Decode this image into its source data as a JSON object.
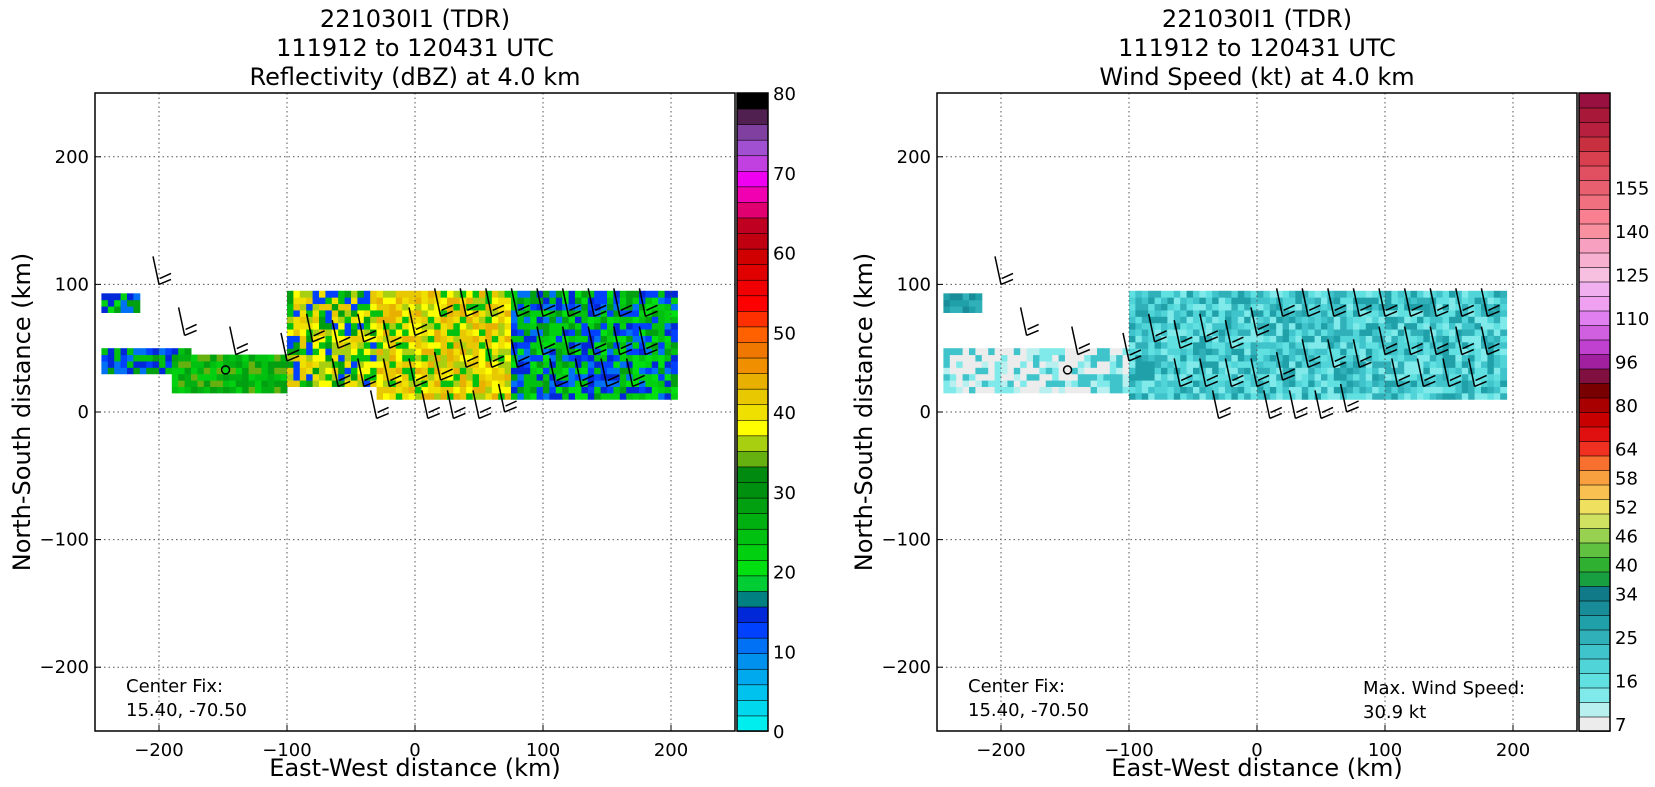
{
  "chart_data": [
    {
      "type": "heatmap",
      "title": [
        "221030I1 (TDR)",
        "111912 to 120431 UTC",
        "Reflectivity (dBZ) at 4.0 km"
      ],
      "xlabel": "East-West distance (km)",
      "ylabel": "North-South distance (km)",
      "xlim": [
        -250,
        250
      ],
      "ylim": [
        -250,
        250
      ],
      "xticks": [
        -200,
        -100,
        0,
        100,
        200
      ],
      "yticks": [
        -200,
        -100,
        0,
        100,
        200
      ],
      "xtick_labels": [
        "−200",
        "−100",
        "0",
        "100",
        "200"
      ],
      "ytick_labels": [
        "−200",
        "−100",
        "0",
        "100",
        "200"
      ],
      "grid": true,
      "annotation": [
        "Center Fix:",
        "15.40, -70.50"
      ],
      "colorbar": {
        "min": 0,
        "max": 80,
        "ticks": [
          0,
          10,
          20,
          30,
          40,
          50,
          60,
          70,
          80
        ],
        "tick_labels": [
          "0",
          "10",
          "20",
          "30",
          "40",
          "50",
          "60",
          "70",
          "80"
        ],
        "colors": [
          "#00eeee",
          "#00d8ee",
          "#00c2ee",
          "#00a8ee",
          "#0090ee",
          "#0070f5",
          "#0040ff",
          "#0028d8",
          "#008080",
          "#00cc33",
          "#00e010",
          "#00d010",
          "#00c010",
          "#00b010",
          "#00a010",
          "#009010",
          "#008a10",
          "#66b010",
          "#a8d010",
          "#ffff00",
          "#f0e000",
          "#e8c800",
          "#e8b000",
          "#f09000",
          "#f07800",
          "#ff6000",
          "#ff3000",
          "#ff0000",
          "#f00000",
          "#e00000",
          "#d00000",
          "#c00010",
          "#c00020",
          "#e00070",
          "#f000b0",
          "#f000f0",
          "#c040e0",
          "#a050d0",
          "#8040a0",
          "#502050",
          "#000000"
        ]
      },
      "echo_regions": [
        {
          "x": [
            -245,
            -215
          ],
          "y": [
            78,
            92
          ],
          "level": "green-blue"
        },
        {
          "x": [
            -245,
            -175
          ],
          "y": [
            30,
            50
          ],
          "level": "blue-green"
        },
        {
          "x": [
            -190,
            -100
          ],
          "y": [
            15,
            45
          ],
          "level": "green"
        },
        {
          "x": [
            -100,
            -30
          ],
          "y": [
            20,
            95
          ],
          "level": "yellow-green"
        },
        {
          "x": [
            -30,
            75
          ],
          "y": [
            10,
            95
          ],
          "level": "yellow"
        },
        {
          "x": [
            75,
            205
          ],
          "y": [
            10,
            95
          ],
          "level": "green-blue"
        }
      ]
    },
    {
      "type": "heatmap",
      "title": [
        "221030I1 (TDR)",
        "111912 to 120431 UTC",
        "Wind Speed (kt) at 4.0 km"
      ],
      "xlabel": "East-West distance (km)",
      "ylabel": "North-South distance (km)",
      "xlim": [
        -250,
        250
      ],
      "ylim": [
        -250,
        250
      ],
      "xticks": [
        -200,
        -100,
        0,
        100,
        200
      ],
      "yticks": [
        -200,
        -100,
        0,
        100,
        200
      ],
      "xtick_labels": [
        "−200",
        "−100",
        "0",
        "100",
        "200"
      ],
      "ytick_labels": [
        "−200",
        "−100",
        "0",
        "100",
        "200"
      ],
      "grid": true,
      "annotation": [
        "Center Fix:",
        "15.40, -70.50"
      ],
      "annotation2": [
        "Max. Wind Speed:",
        "30.9 kt"
      ],
      "colorbar": {
        "tick_labels": [
          "7",
          "16",
          "25",
          "34",
          "40",
          "46",
          "52",
          "58",
          "64",
          "80",
          "96",
          "110",
          "125",
          "140",
          "155"
        ],
        "tick_bins": [
          0,
          3,
          6,
          9,
          11,
          13,
          15,
          17,
          19,
          22,
          25,
          28,
          31,
          34,
          37
        ],
        "colors": [
          "#ececec",
          "#b8f0f0",
          "#80eaea",
          "#60e0e0",
          "#50d4d8",
          "#40c4cc",
          "#30b0b8",
          "#20a0a8",
          "#188c98",
          "#107a88",
          "#18a040",
          "#30b030",
          "#60c040",
          "#98d050",
          "#d0e060",
          "#f0e060",
          "#f8c050",
          "#f8a040",
          "#f87030",
          "#f03020",
          "#e01010",
          "#c80000",
          "#a80000",
          "#780000",
          "#801040",
          "#a020a0",
          "#c040d0",
          "#d060e0",
          "#e080f0",
          "#f0a0f0",
          "#f0b0f0",
          "#f8c0e0",
          "#f8b0d0",
          "#f8a0c0",
          "#f890a0",
          "#f88090",
          "#f07080",
          "#e86070",
          "#e05060",
          "#d84050",
          "#c83040",
          "#b82040",
          "#a81838",
          "#981040"
        ]
      },
      "max_wind_speed": 30.9,
      "wind_regions": [
        {
          "x": [
            -245,
            -215
          ],
          "y": [
            78,
            92
          ],
          "level": "teal"
        },
        {
          "x": [
            -245,
            -100
          ],
          "y": [
            15,
            50
          ],
          "level": "light-cyan-white"
        },
        {
          "x": [
            -100,
            195
          ],
          "y": [
            10,
            95
          ],
          "level": "cyan-teal"
        }
      ]
    }
  ],
  "wind_barbs": [
    {
      "x": -200,
      "y": 100
    },
    {
      "x": -180,
      "y": 60
    },
    {
      "x": -140,
      "y": 45
    },
    {
      "x": -100,
      "y": 40
    },
    {
      "x": -80,
      "y": 55
    },
    {
      "x": -60,
      "y": 50
    },
    {
      "x": -40,
      "y": 55
    },
    {
      "x": -20,
      "y": 50
    },
    {
      "x": 0,
      "y": 60
    },
    {
      "x": 20,
      "y": 75
    },
    {
      "x": 40,
      "y": 75
    },
    {
      "x": 60,
      "y": 75
    },
    {
      "x": 80,
      "y": 75
    },
    {
      "x": 100,
      "y": 75
    },
    {
      "x": 120,
      "y": 75
    },
    {
      "x": 140,
      "y": 75
    },
    {
      "x": 160,
      "y": 75
    },
    {
      "x": 180,
      "y": 75
    },
    {
      "x": -60,
      "y": 20
    },
    {
      "x": -40,
      "y": 20
    },
    {
      "x": -20,
      "y": 20
    },
    {
      "x": 0,
      "y": 20
    },
    {
      "x": 20,
      "y": 25
    },
    {
      "x": 40,
      "y": 35
    },
    {
      "x": 60,
      "y": 35
    },
    {
      "x": 80,
      "y": 35
    },
    {
      "x": 100,
      "y": 45
    },
    {
      "x": 120,
      "y": 45
    },
    {
      "x": 140,
      "y": 45
    },
    {
      "x": 160,
      "y": 45
    },
    {
      "x": 180,
      "y": 45
    },
    {
      "x": -30,
      "y": -5
    },
    {
      "x": 10,
      "y": -5
    },
    {
      "x": 30,
      "y": -5
    },
    {
      "x": 50,
      "y": -5
    },
    {
      "x": 70,
      "y": 0
    },
    {
      "x": 110,
      "y": 20
    },
    {
      "x": 130,
      "y": 20
    },
    {
      "x": 150,
      "y": 20
    },
    {
      "x": 170,
      "y": 20
    }
  ]
}
